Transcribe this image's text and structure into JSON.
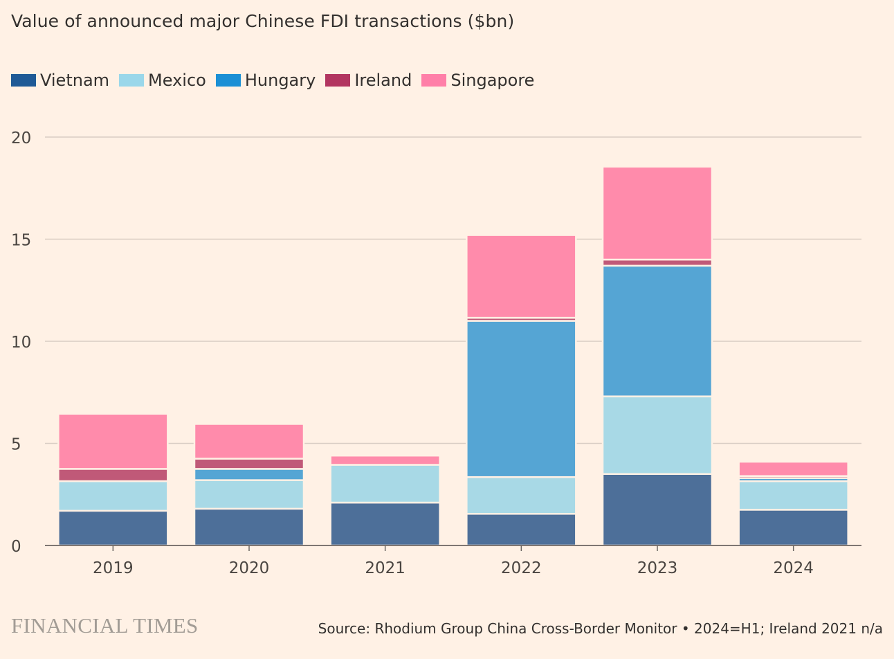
{
  "chart_data": {
    "type": "bar",
    "stacked": true,
    "title": "Value of announced major Chinese FDI transactions ($bn)",
    "categories": [
      "2019",
      "2020",
      "2021",
      "2022",
      "2023",
      "2024"
    ],
    "series": [
      {
        "name": "Vietnam",
        "color": "#4d6f99",
        "legend_color": "#1f5a96",
        "values": [
          1.7,
          1.8,
          2.1,
          1.55,
          3.5,
          1.75
        ]
      },
      {
        "name": "Mexico",
        "color": "#a8d9e6",
        "legend_color": "#9ad7ea",
        "values": [
          1.45,
          1.4,
          1.85,
          1.8,
          3.8,
          1.4
        ]
      },
      {
        "name": "Hungary",
        "color": "#55a5d4",
        "legend_color": "#1b8fd5",
        "values": [
          0.0,
          0.55,
          0.0,
          7.65,
          6.4,
          0.15
        ]
      },
      {
        "name": "Ireland",
        "color": "#c05978",
        "legend_color": "#b23560",
        "values": [
          0.6,
          0.5,
          null,
          0.15,
          0.3,
          0.1
        ]
      },
      {
        "name": "Singapore",
        "color": "#ff8bab",
        "legend_color": "#ff7fa8",
        "values": [
          2.7,
          1.7,
          0.45,
          4.05,
          4.55,
          0.7
        ]
      }
    ],
    "ylim": [
      0,
      20
    ],
    "yticks": [
      0,
      5,
      10,
      15,
      20
    ],
    "grid": true,
    "legend_position": "top-left"
  },
  "footer": {
    "brand": "FINANCIAL TIMES",
    "source": "Source: Rhodium Group China Cross-Border Monitor • 2024=H1; Ireland 2021 n/a"
  },
  "colors": {
    "background": "#fff1e5",
    "gridline": "#d9cdc4",
    "axis": "#6b6561"
  }
}
